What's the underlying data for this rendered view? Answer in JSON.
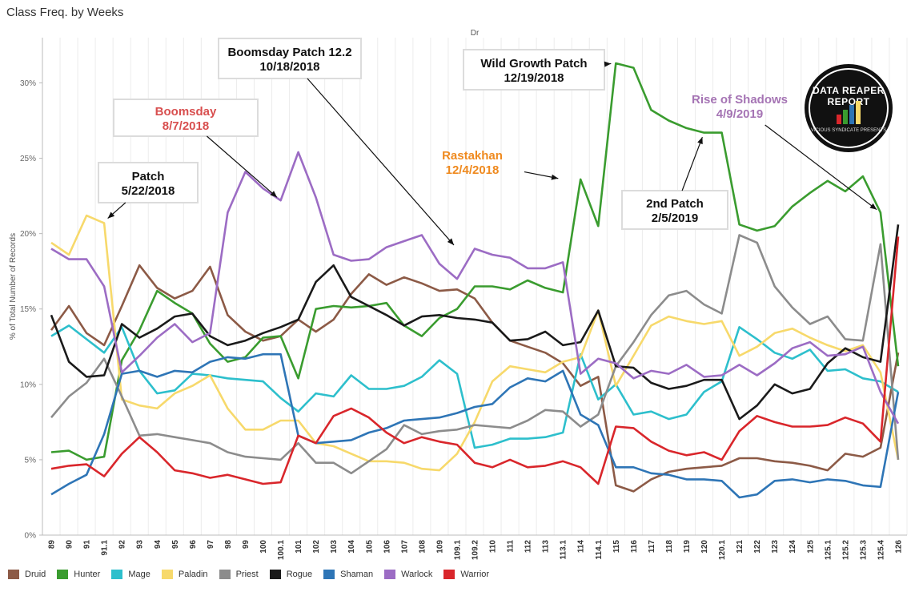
{
  "page_title": "Class Freq. by Weeks",
  "chart_data": {
    "type": "line",
    "title": "Dr",
    "xlabel": "",
    "ylabel": "% of Total Number of Records",
    "ylim": [
      0,
      33
    ],
    "yticks": [
      0,
      5,
      10,
      15,
      20,
      25,
      30
    ],
    "ytick_labels": [
      "0%",
      "5%",
      "10%",
      "15%",
      "20%",
      "25%",
      "30%"
    ],
    "grid": "vertical-only",
    "legend_position": "bottom",
    "categories": [
      "89",
      "90",
      "91",
      "91.1",
      "92",
      "93",
      "94",
      "95",
      "96",
      "97",
      "98",
      "99",
      "100",
      "100.1",
      "101",
      "102",
      "103",
      "104",
      "105",
      "106",
      "107",
      "108",
      "109",
      "109.1",
      "109.2",
      "110",
      "111",
      "112",
      "113",
      "113.1",
      "114",
      "114.1",
      "115",
      "116",
      "117",
      "118",
      "119",
      "120",
      "120.1",
      "121",
      "122",
      "123",
      "124",
      "125",
      "125.1",
      "125.2",
      "125.3",
      "125.4",
      "126"
    ],
    "series": [
      {
        "name": "Druid",
        "color": "#8c5a46",
        "values": [
          13.6,
          15.2,
          13.4,
          12.6,
          15.2,
          17.9,
          16.4,
          15.7,
          16.2,
          17.8,
          14.6,
          13.5,
          12.9,
          13.2,
          14.3,
          13.5,
          14.3,
          16.0,
          17.3,
          16.6,
          17.1,
          16.7,
          16.2,
          16.3,
          15.7,
          14.1,
          12.9,
          12.5,
          12.1,
          11.4,
          9.9,
          10.5,
          3.3,
          2.9,
          3.7,
          4.2,
          4.4,
          4.5,
          4.6,
          5.1,
          5.1,
          4.9,
          4.8,
          4.6,
          4.3,
          5.4,
          5.2,
          5.8,
          12.1
        ]
      },
      {
        "name": "Hunter",
        "color": "#3a9c2f",
        "values": [
          5.5,
          5.6,
          5.0,
          5.2,
          11.6,
          13.6,
          16.2,
          15.4,
          14.7,
          12.7,
          11.5,
          11.8,
          13.1,
          13.2,
          10.4,
          15.0,
          15.2,
          15.1,
          15.2,
          15.4,
          13.9,
          13.2,
          14.4,
          15.0,
          16.5,
          16.5,
          16.3,
          16.9,
          16.4,
          16.1,
          23.6,
          20.5,
          31.3,
          31.0,
          28.2,
          27.5,
          27.0,
          26.7,
          26.7,
          20.6,
          20.2,
          20.5,
          21.8,
          22.7,
          23.5,
          22.8,
          23.8,
          21.4,
          11.2
        ]
      },
      {
        "name": "Mage",
        "color": "#2dbfcc",
        "values": [
          13.2,
          13.9,
          13.0,
          12.1,
          13.8,
          10.9,
          9.4,
          9.6,
          10.7,
          10.6,
          10.4,
          10.3,
          10.2,
          9.1,
          8.2,
          9.4,
          9.2,
          10.6,
          9.7,
          9.7,
          9.9,
          10.5,
          11.6,
          10.7,
          5.8,
          6.0,
          6.4,
          6.4,
          6.5,
          6.8,
          12.0,
          9.0,
          10.0,
          8.0,
          8.2,
          7.7,
          8.0,
          9.5,
          10.2,
          13.8,
          13.0,
          12.1,
          11.7,
          12.3,
          10.9,
          11.0,
          10.4,
          10.2,
          9.5
        ]
      },
      {
        "name": "Paladin",
        "color": "#f7d96b",
        "values": [
          19.4,
          18.6,
          21.2,
          20.7,
          9.0,
          8.6,
          8.4,
          9.4,
          9.9,
          10.6,
          8.4,
          7.0,
          7.0,
          7.6,
          7.6,
          6.1,
          5.9,
          5.4,
          4.9,
          4.9,
          4.8,
          4.4,
          4.3,
          5.4,
          7.5,
          10.2,
          11.2,
          11.0,
          10.8,
          11.5,
          11.8,
          14.9,
          9.9,
          11.9,
          13.9,
          14.5,
          14.2,
          14.0,
          14.2,
          11.9,
          12.5,
          13.4,
          13.7,
          13.1,
          12.6,
          12.2,
          12.6,
          10.8,
          5.0
        ]
      },
      {
        "name": "Priest",
        "color": "#8c8c8c",
        "values": [
          7.8,
          9.2,
          10.1,
          11.7,
          9.2,
          6.6,
          6.7,
          6.5,
          6.3,
          6.1,
          5.5,
          5.2,
          5.1,
          5.0,
          6.1,
          4.8,
          4.8,
          4.1,
          4.9,
          5.7,
          7.3,
          6.7,
          6.9,
          7.0,
          7.3,
          7.2,
          7.1,
          7.6,
          8.3,
          8.2,
          7.2,
          8.0,
          11.2,
          12.8,
          14.6,
          15.9,
          16.2,
          15.3,
          14.7,
          19.9,
          19.4,
          16.5,
          15.1,
          14.0,
          14.5,
          13.0,
          12.9,
          19.3,
          5.0
        ]
      },
      {
        "name": "Rogue",
        "color": "#1a1a1a",
        "values": [
          14.6,
          11.5,
          10.5,
          10.6,
          14.0,
          13.1,
          13.7,
          14.5,
          14.7,
          13.2,
          12.6,
          12.9,
          13.4,
          13.8,
          14.3,
          16.8,
          17.9,
          15.8,
          15.2,
          14.6,
          13.9,
          14.5,
          14.6,
          14.4,
          14.3,
          14.1,
          12.9,
          13.0,
          13.5,
          12.6,
          12.8,
          14.9,
          11.2,
          11.1,
          10.1,
          9.7,
          9.9,
          10.3,
          10.3,
          7.7,
          8.6,
          10.0,
          9.4,
          9.7,
          11.4,
          12.4,
          11.8,
          11.5,
          20.6
        ]
      },
      {
        "name": "Shaman",
        "color": "#2e75b6",
        "values": [
          2.7,
          3.4,
          4.0,
          6.7,
          10.7,
          10.9,
          10.5,
          10.9,
          10.8,
          11.5,
          11.8,
          11.7,
          12.0,
          12.0,
          6.6,
          6.1,
          6.2,
          6.3,
          6.8,
          7.1,
          7.6,
          7.7,
          7.8,
          8.1,
          8.5,
          8.7,
          9.8,
          10.4,
          10.2,
          10.9,
          8.0,
          7.3,
          4.5,
          4.5,
          4.1,
          4.0,
          3.7,
          3.7,
          3.6,
          2.5,
          2.7,
          3.6,
          3.7,
          3.5,
          3.7,
          3.6,
          3.3,
          3.2,
          9.5
        ]
      },
      {
        "name": "Warlock",
        "color": "#9c6cc4",
        "values": [
          19.0,
          18.3,
          18.3,
          16.5,
          10.8,
          11.9,
          13.1,
          14.0,
          12.8,
          13.4,
          21.4,
          24.1,
          23.0,
          22.2,
          25.4,
          22.4,
          18.6,
          18.2,
          18.3,
          19.1,
          19.5,
          19.9,
          18.0,
          17.0,
          19.0,
          18.6,
          18.4,
          17.7,
          17.7,
          18.1,
          10.7,
          11.7,
          11.4,
          10.4,
          10.9,
          10.7,
          11.3,
          10.5,
          10.6,
          11.3,
          10.6,
          11.4,
          12.4,
          12.8,
          11.9,
          12.0,
          12.5,
          9.5,
          7.4
        ]
      },
      {
        "name": "Warrior",
        "color": "#d9262b",
        "values": [
          4.4,
          4.6,
          4.7,
          3.9,
          5.4,
          6.5,
          5.5,
          4.3,
          4.1,
          3.8,
          4.0,
          3.7,
          3.4,
          3.5,
          6.6,
          6.1,
          7.9,
          8.4,
          7.8,
          6.8,
          6.1,
          6.5,
          6.2,
          6.0,
          4.8,
          4.5,
          5.0,
          4.5,
          4.6,
          4.9,
          4.5,
          3.4,
          7.2,
          7.1,
          6.2,
          5.6,
          5.3,
          5.5,
          5.0,
          6.9,
          7.9,
          7.5,
          7.2,
          7.2,
          7.3,
          7.8,
          7.4,
          6.2,
          19.8
        ]
      }
    ],
    "annotations": [
      {
        "lines": [
          "Patch",
          "5/22/2018"
        ],
        "color": "#111111",
        "box": true,
        "arrow_to": {
          "category": "91.1",
          "value": 20.8
        }
      },
      {
        "lines": [
          "Boomsday",
          "8/7/2018"
        ],
        "color": "#d84f4f",
        "box": true,
        "arrow_to": {
          "category": "100.1",
          "value": 22.2
        }
      },
      {
        "lines": [
          "Boomsday Patch 12.2",
          "10/18/2018"
        ],
        "color": "#111111",
        "box": true,
        "arrow_to": {
          "category": "109.1",
          "value": 19.0
        }
      },
      {
        "lines": [
          "Rastakhan",
          "12/4/2018"
        ],
        "color": "#ef8a1f",
        "box": false,
        "arrow_to": {
          "category": "113.1",
          "value": 23.6
        }
      },
      {
        "lines": [
          "Wild Growth Patch",
          "12/19/2018"
        ],
        "color": "#111111",
        "box": true,
        "arrow_to": {
          "category": "115",
          "value": 31.3
        }
      },
      {
        "lines": [
          "2nd Patch",
          "2/5/2019"
        ],
        "color": "#111111",
        "box": true,
        "arrow_to": {
          "category": "120",
          "value": 26.7
        }
      },
      {
        "lines": [
          "Rise of Shadows",
          "4/9/2019"
        ],
        "color": "#a574b4",
        "box": false,
        "arrow_to": {
          "category": "125.4",
          "value": 21.4
        }
      }
    ]
  },
  "logo": {
    "text": "DATA REAPER REPORT",
    "subtext": "VICIOUS SYNDICATE PRESENTS"
  }
}
